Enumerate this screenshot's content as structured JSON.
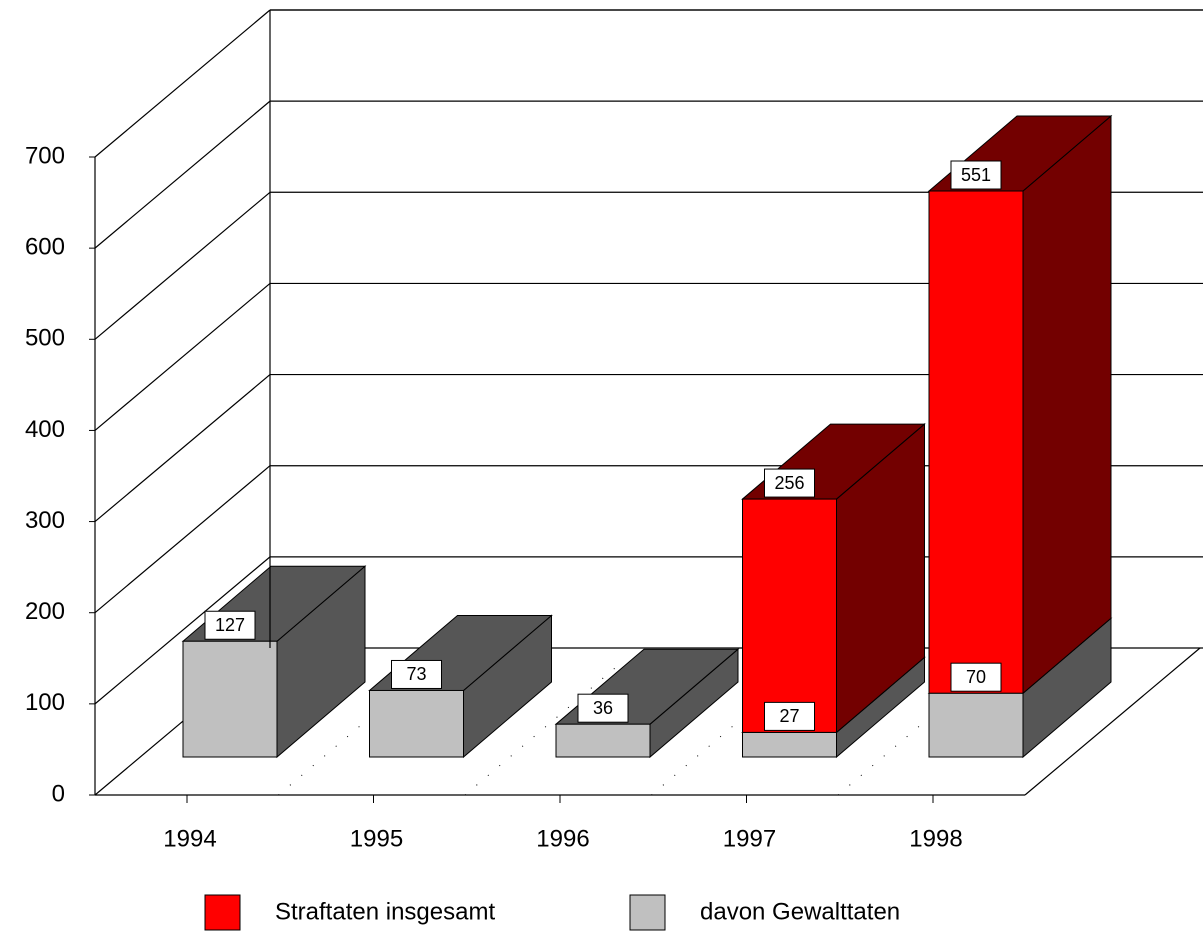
{
  "chart_data": {
    "type": "bar3d-stacked",
    "categories": [
      "1994",
      "1995",
      "1996",
      "1997",
      "1998"
    ],
    "series": [
      {
        "name": "Straftaten insgesamt",
        "color": "#ff0000",
        "values": [
          null,
          null,
          null,
          256,
          551
        ]
      },
      {
        "name": "davon Gewalttaten",
        "color": "#c0c0c0",
        "values": [
          127,
          73,
          36,
          27,
          70
        ]
      }
    ],
    "ylim": [
      0,
      700
    ],
    "yticks": [
      0,
      100,
      200,
      300,
      400,
      500,
      600,
      700
    ],
    "grid": true,
    "legend": "bottom"
  }
}
